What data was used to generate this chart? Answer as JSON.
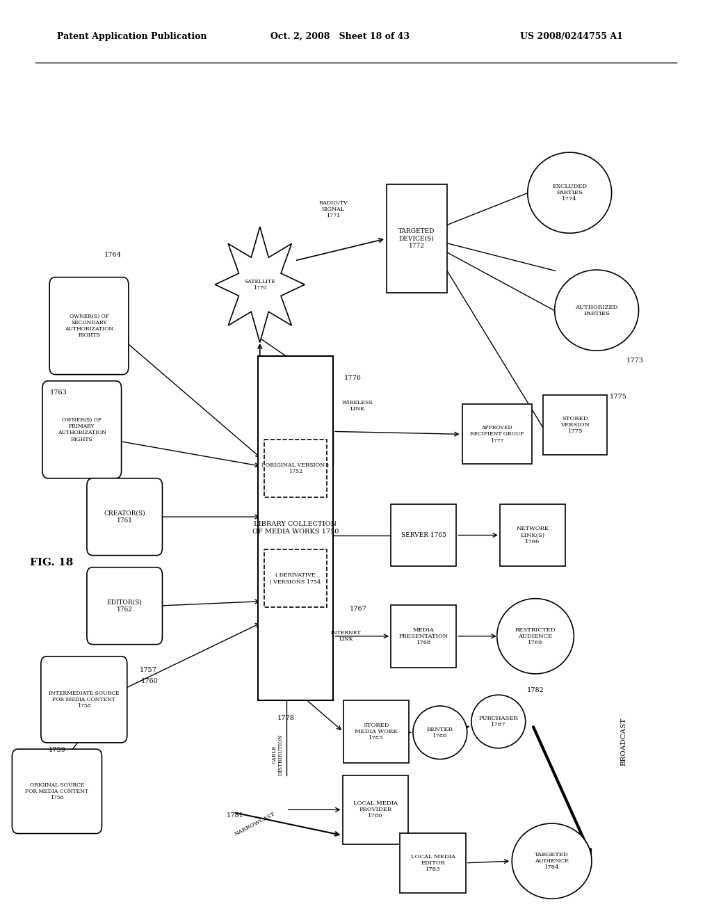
{
  "title_left": "Patent Application Publication",
  "title_mid": "Oct. 2, 2008   Sheet 18 of 43",
  "title_right": "US 2008/0244755 A1",
  "fig_label": "FIG. 18",
  "background": "#ffffff"
}
